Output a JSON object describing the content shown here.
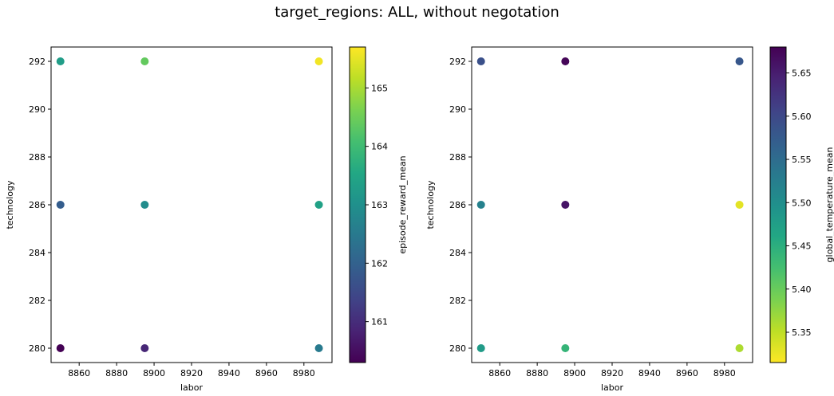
{
  "figure": {
    "title": "target_regions: ALL, without negotation"
  },
  "chart_data": [
    {
      "type": "scatter",
      "xlabel": "labor",
      "ylabel": "technology",
      "xlim": [
        8845,
        8995
      ],
      "ylim": [
        279.4,
        292.6
      ],
      "xticks": [
        8860,
        8880,
        8900,
        8920,
        8940,
        8960,
        8980
      ],
      "yticks": [
        280,
        282,
        284,
        286,
        288,
        290,
        292
      ],
      "colorbar": {
        "label": "episode_reward_mean",
        "colormap": "viridis",
        "range": [
          160.3,
          165.7
        ],
        "ticks": [
          161,
          162,
          163,
          164,
          165
        ]
      },
      "points": [
        {
          "x": 8850,
          "y": 292,
          "c": 163.3
        },
        {
          "x": 8895,
          "y": 292,
          "c": 164.4
        },
        {
          "x": 8988,
          "y": 292,
          "c": 165.6
        },
        {
          "x": 8850,
          "y": 286,
          "c": 161.9
        },
        {
          "x": 8895,
          "y": 286,
          "c": 162.9
        },
        {
          "x": 8988,
          "y": 286,
          "c": 163.4
        },
        {
          "x": 8850,
          "y": 280,
          "c": 160.3
        },
        {
          "x": 8895,
          "y": 280,
          "c": 160.9
        },
        {
          "x": 8988,
          "y": 280,
          "c": 162.5
        }
      ]
    },
    {
      "type": "scatter",
      "xlabel": "labor",
      "ylabel": "technology",
      "xlim": [
        8845,
        8995
      ],
      "ylim": [
        279.4,
        292.6
      ],
      "xticks": [
        8860,
        8880,
        8900,
        8920,
        8940,
        8960,
        8980
      ],
      "yticks": [
        280,
        282,
        284,
        286,
        288,
        290,
        292
      ],
      "colorbar": {
        "label": "global_temperature_mean",
        "colormap": "viridis_r",
        "range": [
          5.315,
          5.68
        ],
        "ticks": [
          5.35,
          5.4,
          5.45,
          5.5,
          5.55,
          5.6,
          5.65
        ]
      },
      "points": [
        {
          "x": 8850,
          "y": 292,
          "c": 5.59
        },
        {
          "x": 8895,
          "y": 292,
          "c": 5.675
        },
        {
          "x": 8988,
          "y": 292,
          "c": 5.58
        },
        {
          "x": 8850,
          "y": 286,
          "c": 5.52
        },
        {
          "x": 8895,
          "y": 286,
          "c": 5.66
        },
        {
          "x": 8988,
          "y": 286,
          "c": 5.33
        },
        {
          "x": 8850,
          "y": 280,
          "c": 5.48
        },
        {
          "x": 8895,
          "y": 280,
          "c": 5.44
        },
        {
          "x": 8988,
          "y": 280,
          "c": 5.36
        }
      ]
    }
  ]
}
